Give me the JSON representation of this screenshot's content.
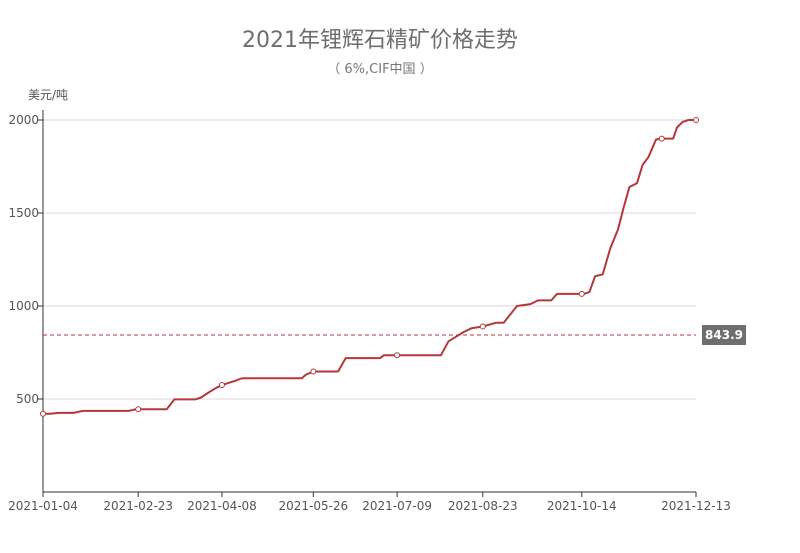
{
  "chart_data": {
    "type": "line",
    "title": "2021年锂辉石精矿价格走势",
    "subtitle": "（ 6%,CIF中国 ）",
    "ylabel": "美元/吨",
    "ylim": [
      0,
      2000
    ],
    "yticks": [
      500,
      1000,
      1500,
      2000
    ],
    "xlim": [
      "2021-01-04",
      "2021-12-13"
    ],
    "xticks": [
      "2021-01-04",
      "2021-02-23",
      "2021-04-08",
      "2021-05-26",
      "2021-07-09",
      "2021-08-23",
      "2021-10-14",
      "2021-12-13"
    ],
    "grid": true,
    "line_color": "#b5373c",
    "mark_line": {
      "value": 843.9,
      "label": "843.9",
      "color": "#b5373c",
      "style": "dashed"
    },
    "series": [
      {
        "x": [
          "2021-01-04",
          "2021-01-08",
          "2021-01-12",
          "2021-01-20",
          "2021-01-25",
          "2021-02-18",
          "2021-02-22",
          "2021-03-10",
          "2021-03-14",
          "2021-03-25",
          "2021-03-28",
          "2021-04-01",
          "2021-04-05",
          "2021-04-08",
          "2021-04-12",
          "2021-04-15",
          "2021-04-18",
          "2021-04-20",
          "2021-05-20",
          "2021-05-22",
          "2021-05-26",
          "2021-06-08",
          "2021-06-12",
          "2021-06-30",
          "2021-07-02",
          "2021-07-10",
          "2021-08-01",
          "2021-08-05",
          "2021-08-09",
          "2021-08-13",
          "2021-08-17",
          "2021-08-23",
          "2021-08-30",
          "2021-09-03",
          "2021-09-10",
          "2021-09-17",
          "2021-09-21",
          "2021-09-28",
          "2021-10-01",
          "2021-10-06",
          "2021-10-15",
          "2021-10-18",
          "2021-10-21",
          "2021-10-25",
          "2021-10-29",
          "2021-11-02",
          "2021-11-05",
          "2021-11-08",
          "2021-11-12",
          "2021-11-15",
          "2021-11-18",
          "2021-11-22",
          "2021-11-25",
          "2021-11-28",
          "2021-12-01",
          "2021-12-03",
          "2021-12-06",
          "2021-12-09",
          "2021-12-13"
        ],
        "y": [
          421,
          421,
          425,
          425,
          436,
          436,
          445,
          445,
          498,
          498,
          508,
          535,
          560,
          575,
          588,
          598,
          610,
          612,
          612,
          630,
          648,
          648,
          720,
          720,
          735,
          735,
          735,
          810,
          835,
          860,
          880,
          890,
          910,
          910,
          1000,
          1010,
          1030,
          1030,
          1065,
          1065,
          1065,
          1075,
          1160,
          1170,
          1310,
          1410,
          1530,
          1640,
          1660,
          1760,
          1800,
          1895,
          1900,
          1900,
          1900,
          1960,
          1990,
          2000,
          2000
        ],
        "markers": [
          [
            "2021-01-04",
            421
          ],
          [
            "2021-02-23",
            445
          ],
          [
            "2021-04-08",
            575
          ],
          [
            "2021-05-26",
            648
          ],
          [
            "2021-07-09",
            735
          ],
          [
            "2021-08-23",
            890
          ],
          [
            "2021-10-14",
            1065
          ],
          [
            "2021-11-25",
            1900
          ],
          [
            "2021-12-13",
            2000
          ]
        ]
      }
    ]
  }
}
